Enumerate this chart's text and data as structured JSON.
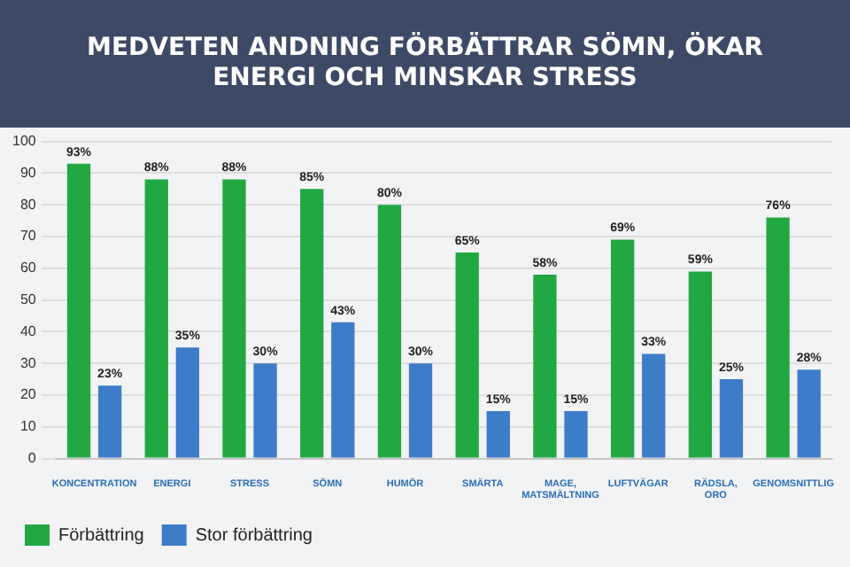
{
  "chart_data": {
    "type": "bar",
    "title": "MEDVETEN ANDNING FÖRBÄTTRAR SÖMN, ÖKAR ENERGI OCH MINSKAR STRESS",
    "categories": [
      "KONCENTRATION",
      "ENERGI",
      "STRESS",
      "SÖMN",
      "HUMÖR",
      "SMÄRTA",
      "MAGE, MATSMÄLTNING",
      "LUFTVÄGAR",
      "RÄDSLA, ORO",
      "GENOMSNITTLIG"
    ],
    "series": [
      {
        "name": "Förbättring",
        "color": "#22a843",
        "values": [
          93,
          88,
          88,
          85,
          80,
          65,
          58,
          69,
          59,
          76
        ],
        "value_labels": [
          "93%",
          "88%",
          "88%",
          "85%",
          "80%",
          "65%",
          "58%",
          "69%",
          "59%",
          "76%"
        ]
      },
      {
        "name": "Stor förbättring",
        "color": "#3d7cc9",
        "values": [
          23,
          35,
          30,
          43,
          30,
          15,
          15,
          33,
          25,
          28
        ],
        "value_labels": [
          "23%",
          "35%",
          "30%",
          "43%",
          "30%",
          "15%",
          "15%",
          "33%",
          "25%",
          "28%"
        ]
      }
    ],
    "ylim": [
      0,
      100
    ],
    "yticks": [
      0,
      10,
      20,
      30,
      40,
      50,
      60,
      70,
      80,
      90,
      100
    ],
    "grid": "y",
    "legend": "bottom left"
  }
}
